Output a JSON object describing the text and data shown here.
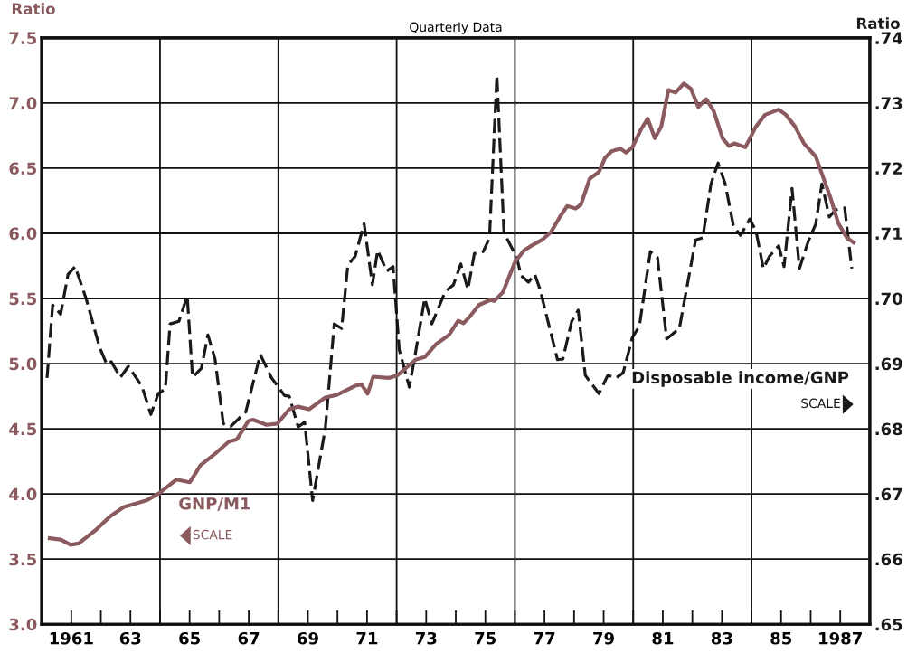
{
  "chart_data": {
    "type": "line",
    "title": "Quarterly Data",
    "ylabel": "Ratio",
    "y2label": "Ratio",
    "annotations": [
      "SCALE",
      "SCALE"
    ],
    "xlim": [
      1960,
      1988
    ],
    "xticks": [
      {
        "value": 1961,
        "label": "1961"
      },
      {
        "value": 1962,
        "label": null
      },
      {
        "value": 1963,
        "label": "63"
      },
      {
        "value": 1964,
        "label": null
      },
      {
        "value": 1965,
        "label": "65"
      },
      {
        "value": 1966,
        "label": null
      },
      {
        "value": 1967,
        "label": "67"
      },
      {
        "value": 1968,
        "label": null
      },
      {
        "value": 1969,
        "label": "69"
      },
      {
        "value": 1970,
        "label": null
      },
      {
        "value": 1971,
        "label": "71"
      },
      {
        "value": 1972,
        "label": null
      },
      {
        "value": 1973,
        "label": "73"
      },
      {
        "value": 1974,
        "label": null
      },
      {
        "value": 1975,
        "label": "75"
      },
      {
        "value": 1976,
        "label": null
      },
      {
        "value": 1977,
        "label": "77"
      },
      {
        "value": 1978,
        "label": null
      },
      {
        "value": 1979,
        "label": "79"
      },
      {
        "value": 1980,
        "label": null
      },
      {
        "value": 1981,
        "label": "81"
      },
      {
        "value": 1982,
        "label": null
      },
      {
        "value": 1983,
        "label": "83"
      },
      {
        "value": 1984,
        "label": null
      },
      {
        "value": 1985,
        "label": "85"
      },
      {
        "value": 1986,
        "label": null
      },
      {
        "value": 1987,
        "label": "1987"
      }
    ],
    "ylim": [
      3.0,
      7.5
    ],
    "yticks": [
      {
        "value": 3.0,
        "label": "3.0"
      },
      {
        "value": 3.5,
        "label": "3.5"
      },
      {
        "value": 4.0,
        "label": "4.0"
      },
      {
        "value": 4.5,
        "label": "4.5"
      },
      {
        "value": 5.0,
        "label": "5.0"
      },
      {
        "value": 5.5,
        "label": "5.5"
      },
      {
        "value": 6.0,
        "label": "6.0"
      },
      {
        "value": 6.5,
        "label": "6.5"
      },
      {
        "value": 7.0,
        "label": "7.0"
      },
      {
        "value": 7.5,
        "label": "7.5"
      }
    ],
    "y2lim": [
      0.65,
      0.74
    ],
    "y2ticks": [
      {
        "value": 0.65,
        "label": ".65"
      },
      {
        "value": 0.66,
        "label": ".66"
      },
      {
        "value": 0.67,
        "label": ".67"
      },
      {
        "value": 0.68,
        "label": ".68"
      },
      {
        "value": 0.69,
        "label": ".69"
      },
      {
        "value": 0.7,
        "label": ".70"
      },
      {
        "value": 0.71,
        "label": ".71"
      },
      {
        "value": 0.72,
        "label": ".72"
      },
      {
        "value": 0.73,
        "label": ".73"
      },
      {
        "value": 0.74,
        "label": ".74"
      }
    ],
    "grid": "y",
    "ref_lines": [
      {
        "axis": "x",
        "value": 1964,
        "color": "#111111"
      },
      {
        "axis": "x",
        "value": 1968,
        "color": "#111111"
      },
      {
        "axis": "x",
        "value": 1972,
        "color": "#111111"
      },
      {
        "axis": "x",
        "value": 1976,
        "color": "#111111"
      },
      {
        "axis": "x",
        "value": 1980,
        "color": "#111111"
      },
      {
        "axis": "x",
        "value": 1984,
        "color": "#111111"
      }
    ],
    "series": [
      {
        "name": "GNP/M1",
        "color": "#8a5a5f",
        "line_style": "solid",
        "x": [
          1960.27,
          1960.64,
          1960.98,
          1961.25,
          1961.86,
          1962.32,
          1962.78,
          1963.08,
          1963.54,
          1964.0,
          1964.55,
          1965.01,
          1965.37,
          1965.92,
          1966.32,
          1966.6,
          1966.99,
          1967.14,
          1967.6,
          1967.97,
          1968.37,
          1968.67,
          1969.04,
          1969.59,
          1969.98,
          1970.6,
          1970.81,
          1971.02,
          1971.21,
          1971.73,
          1972.03,
          1972.64,
          1972.95,
          1973.34,
          1973.77,
          1974.08,
          1974.26,
          1974.47,
          1974.78,
          1975.18,
          1975.3,
          1975.6,
          1976.0,
          1976.31,
          1976.52,
          1976.92,
          1977.22,
          1977.53,
          1977.77,
          1978.05,
          1978.23,
          1978.53,
          1978.84,
          1979.05,
          1979.27,
          1979.57,
          1979.76,
          1979.97,
          1980.27,
          1980.49,
          1980.73,
          1980.95,
          1981.19,
          1981.43,
          1981.71,
          1981.95,
          1982.2,
          1982.47,
          1982.72,
          1983.02,
          1983.24,
          1983.42,
          1983.79,
          1984.15,
          1984.46,
          1984.92,
          1985.16,
          1985.47,
          1985.77,
          1986.17,
          1986.47,
          1986.69,
          1986.93,
          1987.21,
          1987.45
        ],
        "values": [
          3.66,
          3.65,
          3.61,
          3.62,
          3.73,
          3.83,
          3.9,
          3.92,
          3.95,
          4.01,
          4.11,
          4.09,
          4.22,
          4.32,
          4.4,
          4.42,
          4.56,
          4.57,
          4.53,
          4.54,
          4.65,
          4.67,
          4.65,
          4.74,
          4.76,
          4.83,
          4.84,
          4.77,
          4.9,
          4.89,
          4.91,
          5.03,
          5.05,
          5.15,
          5.22,
          5.33,
          5.31,
          5.36,
          5.45,
          5.49,
          5.48,
          5.55,
          5.78,
          5.87,
          5.9,
          5.95,
          6.01,
          6.13,
          6.21,
          6.19,
          6.22,
          6.42,
          6.47,
          6.58,
          6.63,
          6.65,
          6.62,
          6.66,
          6.8,
          6.88,
          6.73,
          6.82,
          7.1,
          7.08,
          7.15,
          7.11,
          6.97,
          7.03,
          6.94,
          6.73,
          6.67,
          6.69,
          6.66,
          6.82,
          6.91,
          6.95,
          6.91,
          6.82,
          6.69,
          6.59,
          6.4,
          6.26,
          6.08,
          5.97,
          5.93
        ]
      },
      {
        "name": "Disposable income/GNP",
        "color": "#1a1a1a",
        "line_style": "dashed",
        "axis": "y2",
        "x": [
          1960.18,
          1960.37,
          1960.64,
          1960.89,
          1961.13,
          1961.5,
          1961.95,
          1962.2,
          1962.35,
          1962.66,
          1962.93,
          1963.39,
          1963.69,
          1963.94,
          1964.18,
          1964.34,
          1964.64,
          1964.92,
          1965.1,
          1965.4,
          1965.62,
          1965.86,
          1966.14,
          1966.38,
          1966.9,
          1967.39,
          1967.76,
          1968.21,
          1968.37,
          1968.67,
          1968.89,
          1969.16,
          1969.59,
          1969.89,
          1970.14,
          1970.35,
          1970.6,
          1970.9,
          1971.18,
          1971.36,
          1971.66,
          1971.88,
          1972.09,
          1972.43,
          1972.64,
          1972.95,
          1973.19,
          1973.65,
          1973.92,
          1974.17,
          1974.41,
          1974.63,
          1974.93,
          1975.14,
          1975.39,
          1975.63,
          1976.06,
          1976.21,
          1976.46,
          1976.67,
          1976.85,
          1977.44,
          1977.62,
          1977.92,
          1978.14,
          1978.38,
          1978.84,
          1979.14,
          1979.42,
          1979.66,
          1979.97,
          1980.21,
          1980.58,
          1980.82,
          1981.13,
          1981.56,
          1982.11,
          1982.35,
          1982.63,
          1982.87,
          1983.11,
          1983.39,
          1983.63,
          1983.94,
          1984.15,
          1984.4,
          1984.61,
          1984.92,
          1985.1,
          1985.37,
          1985.62,
          1985.92,
          1986.17,
          1986.38,
          1986.63,
          1986.84,
          1987.15,
          1987.39
        ],
        "values": [
          0.6878,
          0.699,
          0.6976,
          0.7037,
          0.7049,
          0.7,
          0.6926,
          0.6899,
          0.6903,
          0.6879,
          0.6896,
          0.6865,
          0.6822,
          0.6854,
          0.6861,
          0.6961,
          0.6965,
          0.7004,
          0.6879,
          0.6893,
          0.6944,
          0.6907,
          0.6808,
          0.6803,
          0.6826,
          0.6914,
          0.6879,
          0.6851,
          0.685,
          0.6803,
          0.681,
          0.669,
          0.6801,
          0.6961,
          0.6954,
          0.7051,
          0.7065,
          0.7115,
          0.7021,
          0.7074,
          0.7042,
          0.7049,
          0.6921,
          0.6864,
          0.6917,
          0.7,
          0.6961,
          0.7011,
          0.7021,
          0.7053,
          0.7014,
          0.7069,
          0.7072,
          0.7093,
          0.7343,
          0.7101,
          0.7063,
          0.7035,
          0.7025,
          0.7037,
          0.7014,
          0.6906,
          0.6907,
          0.6965,
          0.6982,
          0.6882,
          0.6854,
          0.6882,
          0.6878,
          0.6886,
          0.694,
          0.6958,
          0.7072,
          0.7063,
          0.6938,
          0.6954,
          0.709,
          0.7093,
          0.7176,
          0.7208,
          0.7176,
          0.7111,
          0.7097,
          0.7122,
          0.7104,
          0.7046,
          0.7065,
          0.7081,
          0.7049,
          0.7169,
          0.7046,
          0.7088,
          0.7114,
          0.7176,
          0.7125,
          0.7136,
          0.7139,
          0.7046
        ]
      }
    ]
  }
}
